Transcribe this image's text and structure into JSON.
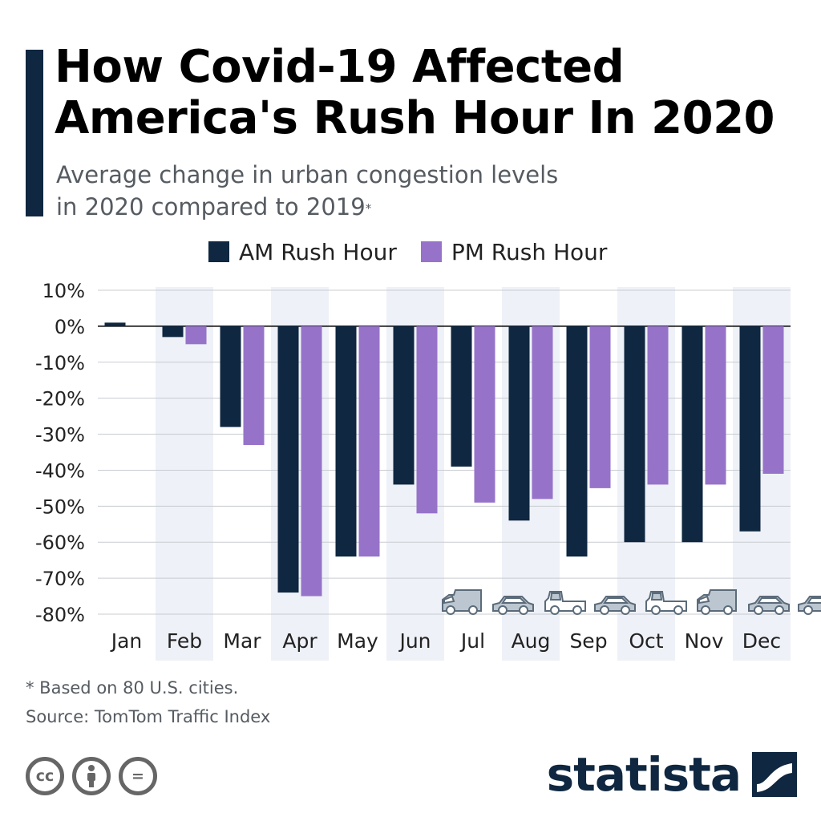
{
  "header": {
    "title_line1": "How Covid-19 Affected",
    "title_line2": "America's Rush Hour In 2020",
    "subtitle_line1": "Average change in urban congestion levels",
    "subtitle_line2": "in 2020 compared to 2019",
    "subtitle_mark": "*"
  },
  "legend": {
    "am_label": "AM Rush Hour",
    "pm_label": "PM Rush Hour"
  },
  "colors": {
    "am": "#0f2740",
    "pm": "#9673c9",
    "band": "#eef1f7",
    "grid": "#c8ccd1"
  },
  "chart_data": {
    "type": "bar",
    "title": "How Covid-19 Affected America's Rush Hour In 2020",
    "subtitle": "Average change in urban congestion levels in 2020 compared to 2019*",
    "categories": [
      "Jan",
      "Feb",
      "Mar",
      "Apr",
      "May",
      "Jun",
      "Jul",
      "Aug",
      "Sep",
      "Oct",
      "Nov",
      "Dec"
    ],
    "series": [
      {
        "name": "AM Rush Hour",
        "values": [
          1,
          -3,
          -28,
          -74,
          -64,
          -44,
          -39,
          -54,
          -64,
          -60,
          -60,
          -57
        ]
      },
      {
        "name": "PM Rush Hour",
        "values": [
          0,
          -5,
          -33,
          -75,
          -64,
          -52,
          -49,
          -48,
          -45,
          -44,
          -44,
          -41
        ]
      }
    ],
    "ylim": [
      -80,
      10
    ],
    "yticks": [
      10,
      0,
      -10,
      -20,
      -30,
      -40,
      -50,
      -60,
      -70,
      -80
    ],
    "ytick_labels": [
      "10%",
      "0%",
      "-10%",
      "-20%",
      "-30%",
      "-40%",
      "-50%",
      "-60%",
      "-70%",
      "-80%"
    ],
    "xlabel": "",
    "ylabel": "",
    "grid": true,
    "legend_position": "top"
  },
  "decorations": {
    "vehicles": [
      "van-icon",
      "car-icon",
      "pickup-icon",
      "car-icon",
      "pickup-icon",
      "van-icon",
      "car-icon",
      "car-icon"
    ]
  },
  "footer": {
    "footnote": "* Based on 80 U.S. cities.",
    "source": "Source: TomTom Traffic Index",
    "license_icons": [
      "cc-icon",
      "attribution-icon",
      "no-derivatives-icon"
    ],
    "cc_text": "cc",
    "nd_text": "=",
    "brand": "statista"
  }
}
